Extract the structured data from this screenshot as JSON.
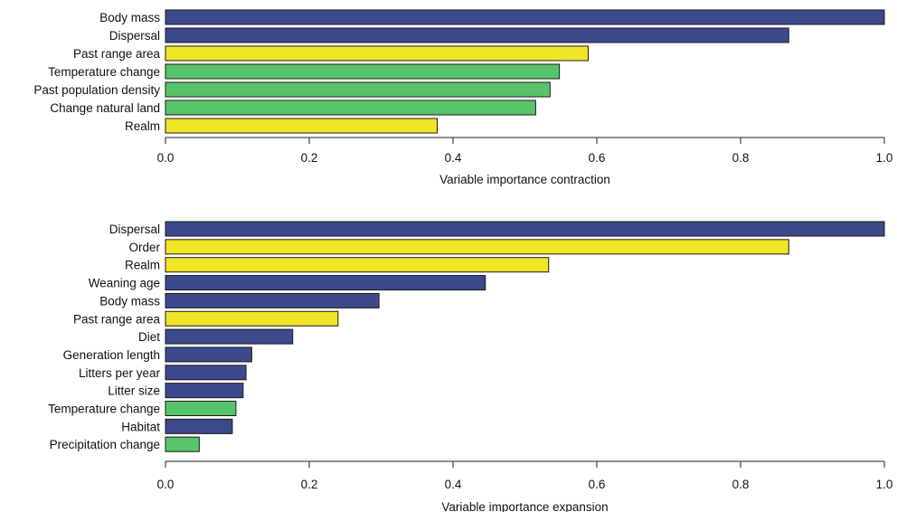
{
  "colors": {
    "blue": "#3b4a8c",
    "yellow": "#f0e526",
    "green": "#58c46a",
    "stroke": "#1a1a1a"
  },
  "chart_data": [
    {
      "type": "bar",
      "orientation": "horizontal",
      "xlabel": "Variable importance contraction",
      "xlim": [
        0,
        1
      ],
      "ticks": [
        "0.0",
        "0.2",
        "0.4",
        "0.6",
        "0.8",
        "1.0"
      ],
      "categories": [
        "Body mass",
        "Dispersal",
        "Past range area",
        "Temperature change",
        "Past population density",
        "Change natural land",
        "Realm"
      ],
      "values": [
        1.0,
        0.867,
        0.588,
        0.548,
        0.535,
        0.515,
        0.378
      ],
      "bar_colors": [
        "blue",
        "blue",
        "yellow",
        "green",
        "green",
        "green",
        "yellow"
      ]
    },
    {
      "type": "bar",
      "orientation": "horizontal",
      "xlabel": "Variable importance expansion",
      "xlim": [
        0,
        1
      ],
      "ticks": [
        "0.0",
        "0.2",
        "0.4",
        "0.6",
        "0.8",
        "1.0"
      ],
      "categories": [
        "Dispersal",
        "Order",
        "Realm",
        "Weaning age",
        "Body mass",
        "Past range area",
        "Diet",
        "Generation length",
        "Litters per year",
        "Litter size",
        "Temperature change",
        "Habitat",
        "Precipitation change"
      ],
      "values": [
        1.0,
        0.867,
        0.533,
        0.445,
        0.297,
        0.24,
        0.177,
        0.12,
        0.112,
        0.108,
        0.098,
        0.093,
        0.047
      ],
      "bar_colors": [
        "blue",
        "yellow",
        "yellow",
        "blue",
        "blue",
        "yellow",
        "blue",
        "blue",
        "blue",
        "blue",
        "green",
        "blue",
        "green"
      ]
    }
  ]
}
